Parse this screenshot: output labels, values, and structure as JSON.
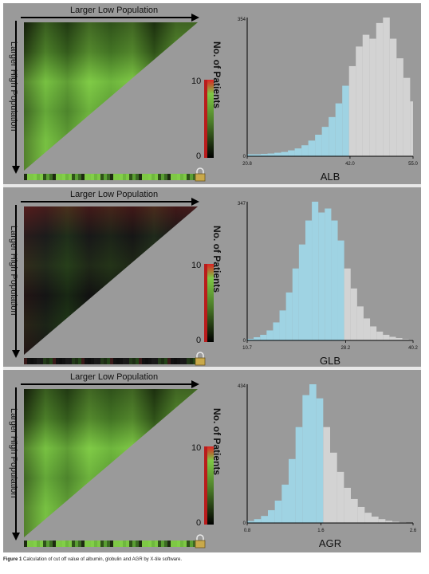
{
  "colors": {
    "panel_bg": "#9a9a9a",
    "green": "#7ec845",
    "blue_bars": "#9fd3e3",
    "grey_bars": "#d3d3d3"
  },
  "heatmap_labels": {
    "top": "Larger Low Population",
    "left": "Larger High Population",
    "legend_title": "No. of Patients",
    "legend_max": "10",
    "legend_min": "0"
  },
  "chart_data": [
    {
      "type": "bar",
      "title": "",
      "xlabel": "ALB",
      "ylabel": "",
      "x_range": [
        20.8,
        55.0
      ],
      "x_ticks": [
        "20.8",
        "42.0",
        "55.0"
      ],
      "y_ticks": [
        "354",
        "0"
      ],
      "ylim": [
        0,
        354
      ],
      "cutoff": 42.0,
      "bin_start": 20.8,
      "bin_width": 1.4,
      "values": [
        5,
        5,
        6,
        7,
        9,
        11,
        15,
        20,
        28,
        40,
        55,
        75,
        100,
        135,
        180,
        230,
        280,
        310,
        300,
        340,
        354,
        300,
        250,
        200,
        140,
        90,
        50,
        28,
        14,
        8,
        4,
        2
      ],
      "heatmap": "green"
    },
    {
      "type": "bar",
      "title": "",
      "xlabel": "GLB",
      "ylabel": "",
      "x_range": [
        10.7,
        40.2
      ],
      "x_ticks": [
        "10.7",
        "28.2",
        "40.2"
      ],
      "y_ticks": [
        "347",
        "0"
      ],
      "ylim": [
        0,
        347
      ],
      "cutoff": 28.2,
      "bin_start": 10.7,
      "bin_width": 1.15,
      "values": [
        4,
        8,
        14,
        25,
        45,
        75,
        120,
        180,
        240,
        300,
        347,
        320,
        330,
        300,
        250,
        180,
        130,
        85,
        55,
        35,
        22,
        14,
        9,
        6,
        3,
        2
      ],
      "heatmap": "dark"
    },
    {
      "type": "bar",
      "title": "",
      "xlabel": "AGR",
      "ylabel": "",
      "x_range": [
        0.8,
        2.6
      ],
      "x_ticks": [
        "0.8",
        "1.6",
        "2.6"
      ],
      "y_ticks": [
        "434",
        "0"
      ],
      "ylim": [
        0,
        434
      ],
      "cutoff": 1.6,
      "bin_start": 0.8,
      "bin_width": 0.075,
      "values": [
        6,
        12,
        22,
        40,
        70,
        120,
        200,
        300,
        400,
        434,
        390,
        300,
        220,
        160,
        110,
        75,
        50,
        32,
        20,
        12,
        7,
        4,
        2,
        1
      ],
      "heatmap": "green"
    }
  ],
  "caption": {
    "label": "Figure 1",
    "text": "Calculation of cut off value of albumin, globulin and AGR by X-tile software."
  }
}
